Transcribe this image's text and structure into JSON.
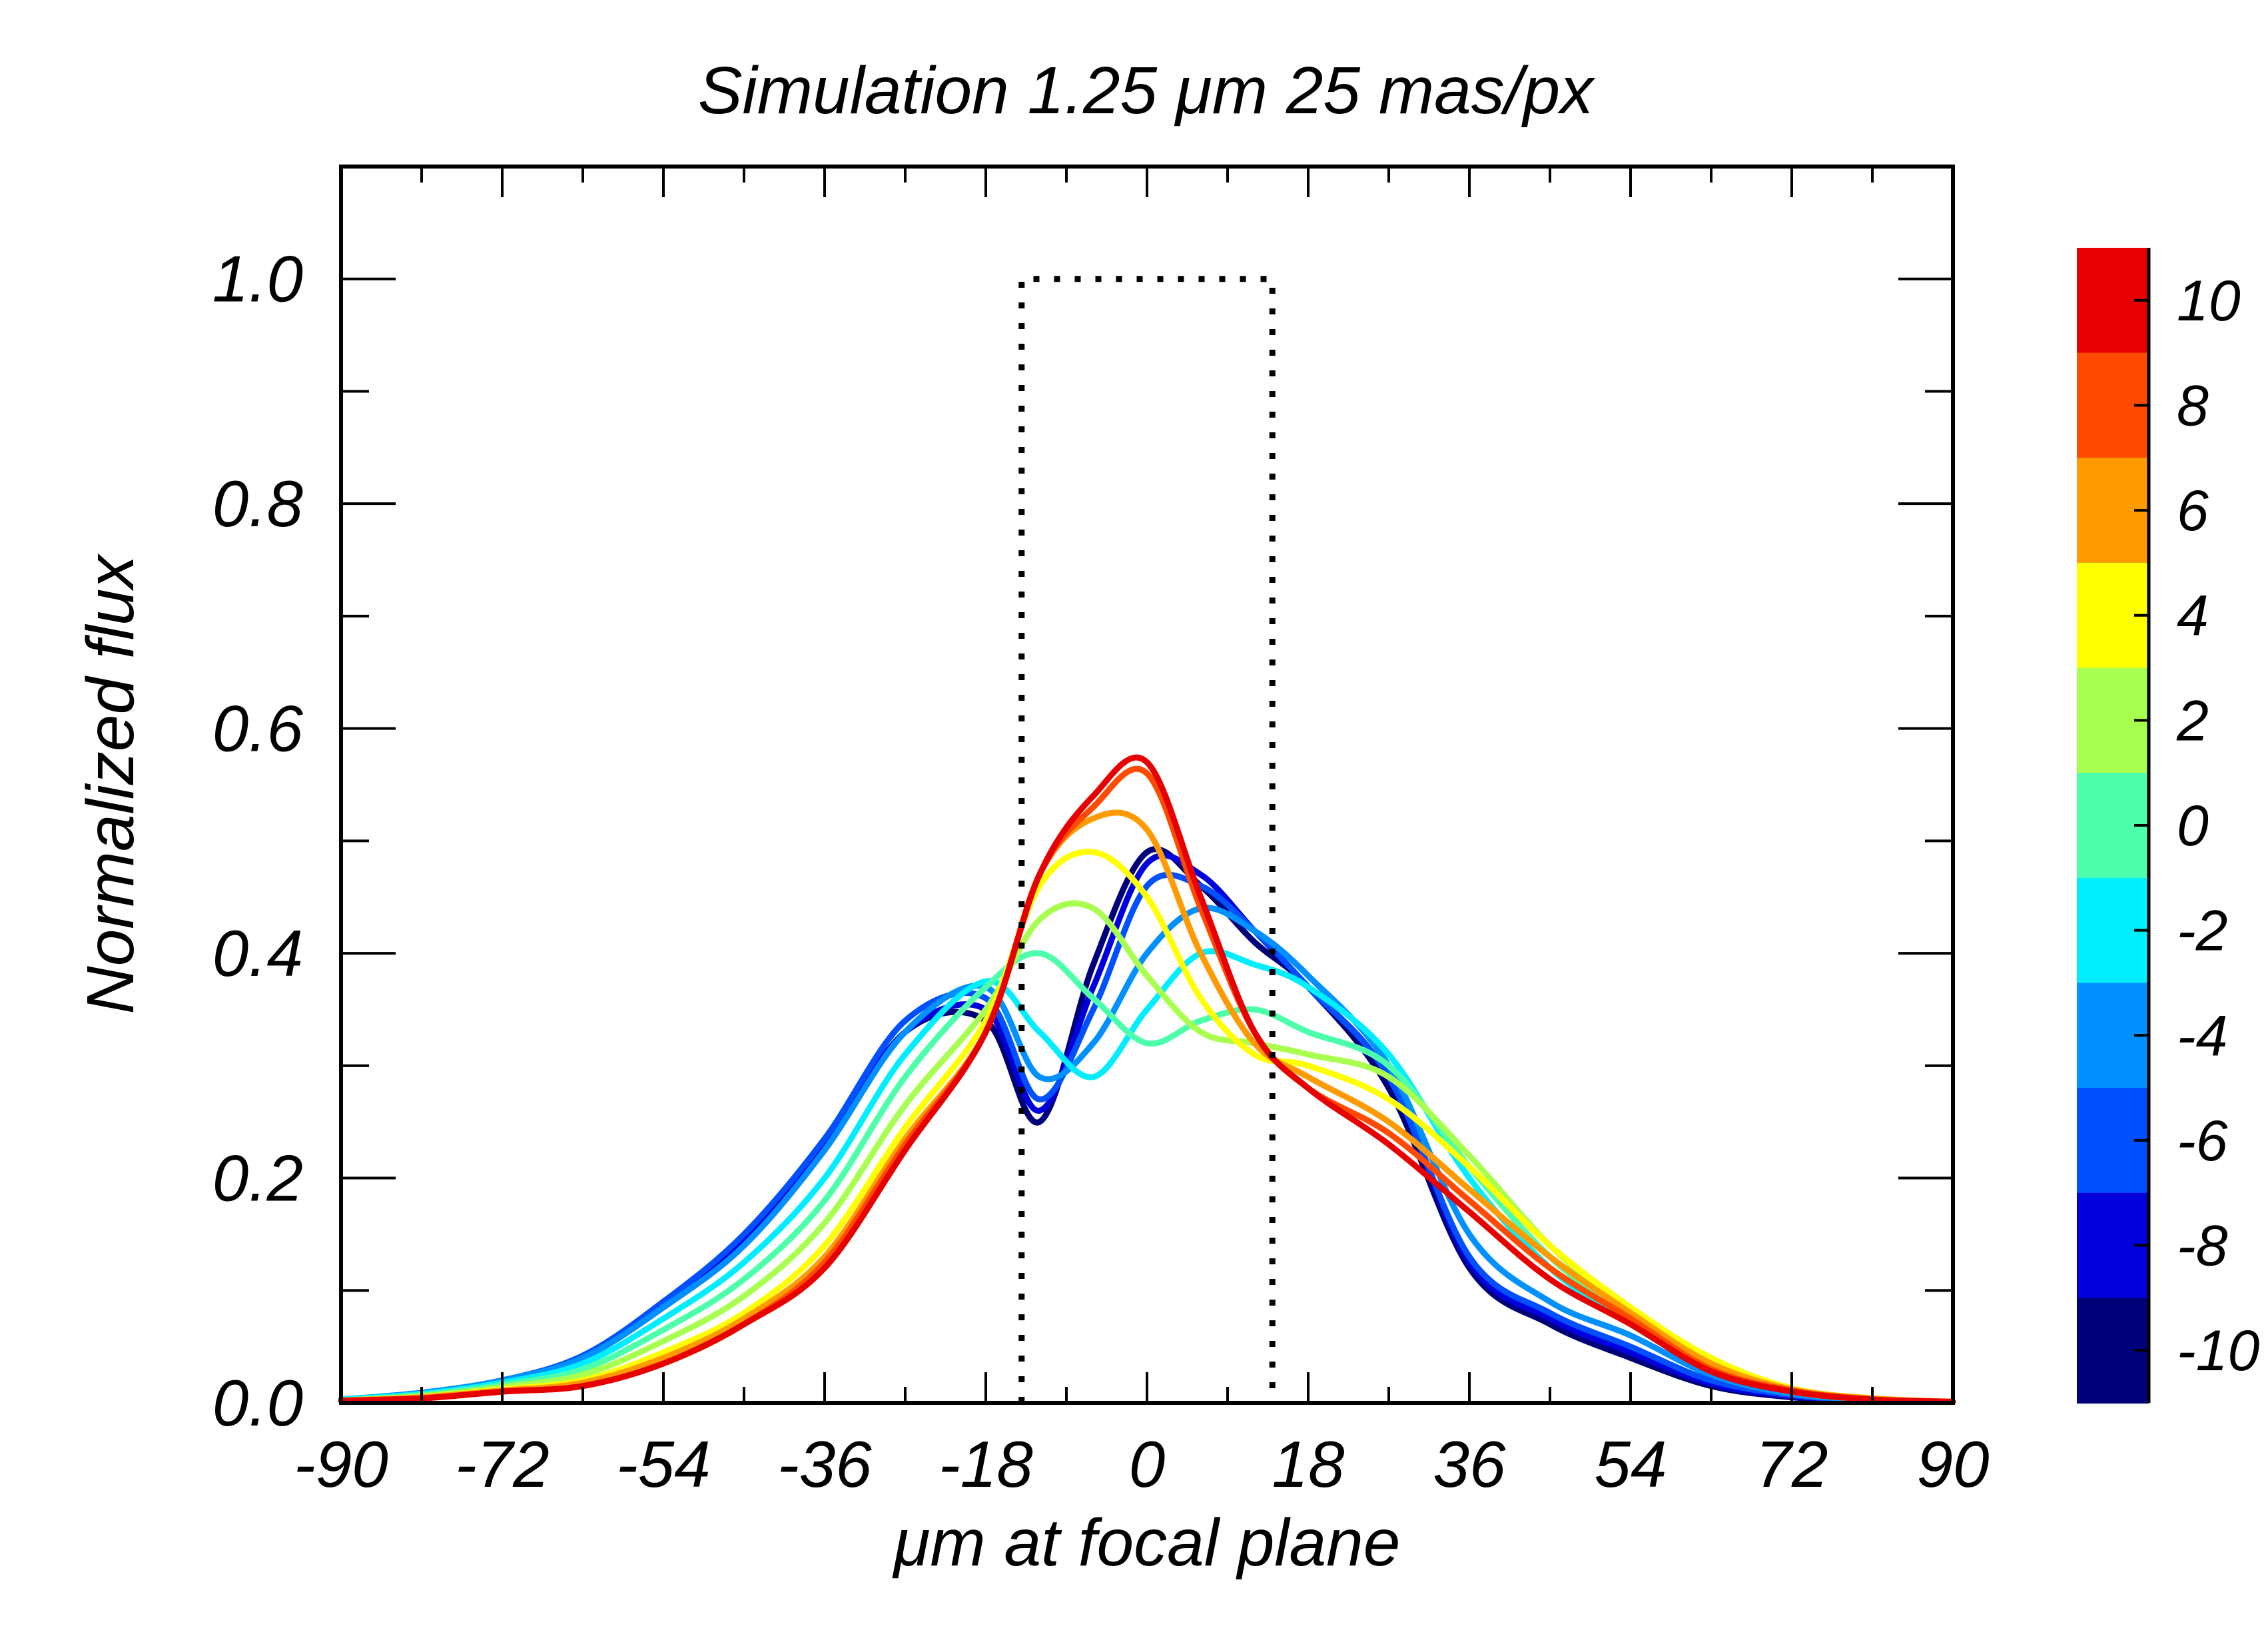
{
  "chart_data": {
    "type": "line",
    "title": "Simulation    1.25 μm   25 mas/px",
    "xlabel": "μm at focal plane",
    "ylabel": "Normalized flux",
    "xlim": [
      -90,
      90
    ],
    "ylim": [
      0,
      1.1
    ],
    "x_ticks": [
      "-90",
      "-72",
      "-54",
      "-36",
      "-18",
      "0",
      "18",
      "36",
      "54",
      "72",
      "90"
    ],
    "y_ticks": [
      "0.0",
      "0.2",
      "0.4",
      "0.6",
      "0.8",
      "1.0"
    ],
    "aperture": {
      "name": "slit",
      "style": "dotted",
      "x_left": -14,
      "x_right": 14,
      "height": 1.0
    },
    "x": [
      -90,
      -81,
      -72,
      -63,
      -54,
      -45,
      -36,
      -27,
      -18,
      -12,
      -6,
      0,
      6,
      12,
      18,
      27,
      36,
      45,
      54,
      63,
      72,
      81,
      90
    ],
    "colorbar": {
      "labels": [
        "10",
        "8",
        "6",
        "4",
        "2",
        "0",
        "-2",
        "-4",
        "-6",
        "-8",
        "-10"
      ],
      "colors": [
        "#E60000",
        "#FF4A00",
        "#FF9A00",
        "#FFFF00",
        "#A8FF50",
        "#4DFFAA",
        "#00EEFF",
        "#0090FF",
        "#0050FF",
        "#0000DD",
        "#00007A"
      ]
    },
    "series": [
      {
        "name": "-10",
        "color": "#00007A",
        "values": [
          0.003,
          0.008,
          0.02,
          0.04,
          0.085,
          0.14,
          0.225,
          0.33,
          0.34,
          0.25,
          0.39,
          0.49,
          0.46,
          0.41,
          0.37,
          0.28,
          0.12,
          0.07,
          0.04,
          0.015,
          0.005,
          0.002,
          0.001
        ]
      },
      {
        "name": "-8",
        "color": "#0000DD",
        "values": [
          0.003,
          0.008,
          0.02,
          0.04,
          0.09,
          0.145,
          0.23,
          0.33,
          0.35,
          0.26,
          0.37,
          0.48,
          0.47,
          0.42,
          0.37,
          0.29,
          0.125,
          0.075,
          0.045,
          0.017,
          0.006,
          0.002,
          0.001
        ]
      },
      {
        "name": "-6",
        "color": "#0050FF",
        "values": [
          0.003,
          0.009,
          0.02,
          0.042,
          0.09,
          0.15,
          0.235,
          0.34,
          0.36,
          0.27,
          0.35,
          0.46,
          0.46,
          0.42,
          0.37,
          0.29,
          0.13,
          0.08,
          0.05,
          0.02,
          0.007,
          0.002,
          0.001
        ]
      },
      {
        "name": "-4",
        "color": "#0090FF",
        "values": [
          0.003,
          0.009,
          0.02,
          0.04,
          0.085,
          0.14,
          0.225,
          0.33,
          0.37,
          0.29,
          0.32,
          0.4,
          0.44,
          0.42,
          0.38,
          0.3,
          0.15,
          0.09,
          0.06,
          0.025,
          0.008,
          0.003,
          0.001
        ]
      },
      {
        "name": "-2",
        "color": "#00EEFF",
        "values": [
          0.003,
          0.008,
          0.018,
          0.035,
          0.075,
          0.125,
          0.2,
          0.31,
          0.375,
          0.33,
          0.29,
          0.35,
          0.4,
          0.39,
          0.37,
          0.31,
          0.2,
          0.12,
          0.07,
          0.03,
          0.01,
          0.003,
          0.001
        ]
      },
      {
        "name": "0",
        "color": "#4DFFAA",
        "values": [
          0.002,
          0.007,
          0.016,
          0.03,
          0.065,
          0.11,
          0.18,
          0.29,
          0.37,
          0.4,
          0.36,
          0.32,
          0.34,
          0.35,
          0.33,
          0.3,
          0.21,
          0.13,
          0.075,
          0.03,
          0.01,
          0.003,
          0.001
        ]
      },
      {
        "name": "2",
        "color": "#A8FF50",
        "values": [
          0.002,
          0.006,
          0.014,
          0.025,
          0.055,
          0.095,
          0.16,
          0.265,
          0.35,
          0.43,
          0.44,
          0.38,
          0.33,
          0.32,
          0.31,
          0.29,
          0.22,
          0.14,
          0.08,
          0.035,
          0.012,
          0.004,
          0.001
        ]
      },
      {
        "name": "4",
        "color": "#FFFF00",
        "values": [
          0.002,
          0.005,
          0.012,
          0.02,
          0.045,
          0.08,
          0.14,
          0.245,
          0.34,
          0.46,
          0.49,
          0.45,
          0.36,
          0.31,
          0.3,
          0.27,
          0.21,
          0.14,
          0.085,
          0.04,
          0.013,
          0.004,
          0.001
        ]
      },
      {
        "name": "6",
        "color": "#FF9A00",
        "values": [
          0.002,
          0.005,
          0.011,
          0.018,
          0.04,
          0.075,
          0.13,
          0.235,
          0.33,
          0.47,
          0.52,
          0.51,
          0.4,
          0.32,
          0.29,
          0.25,
          0.19,
          0.13,
          0.08,
          0.035,
          0.012,
          0.004,
          0.001
        ]
      },
      {
        "name": "8",
        "color": "#FF4A00",
        "values": [
          0.002,
          0.004,
          0.01,
          0.015,
          0.035,
          0.07,
          0.125,
          0.23,
          0.33,
          0.47,
          0.53,
          0.56,
          0.44,
          0.33,
          0.28,
          0.24,
          0.18,
          0.12,
          0.075,
          0.03,
          0.011,
          0.003,
          0.001
        ]
      },
      {
        "name": "10",
        "color": "#E60000",
        "values": [
          0.002,
          0.004,
          0.01,
          0.015,
          0.035,
          0.07,
          0.12,
          0.225,
          0.33,
          0.47,
          0.54,
          0.57,
          0.45,
          0.33,
          0.28,
          0.23,
          0.17,
          0.11,
          0.07,
          0.028,
          0.01,
          0.003,
          0.001
        ]
      }
    ]
  }
}
